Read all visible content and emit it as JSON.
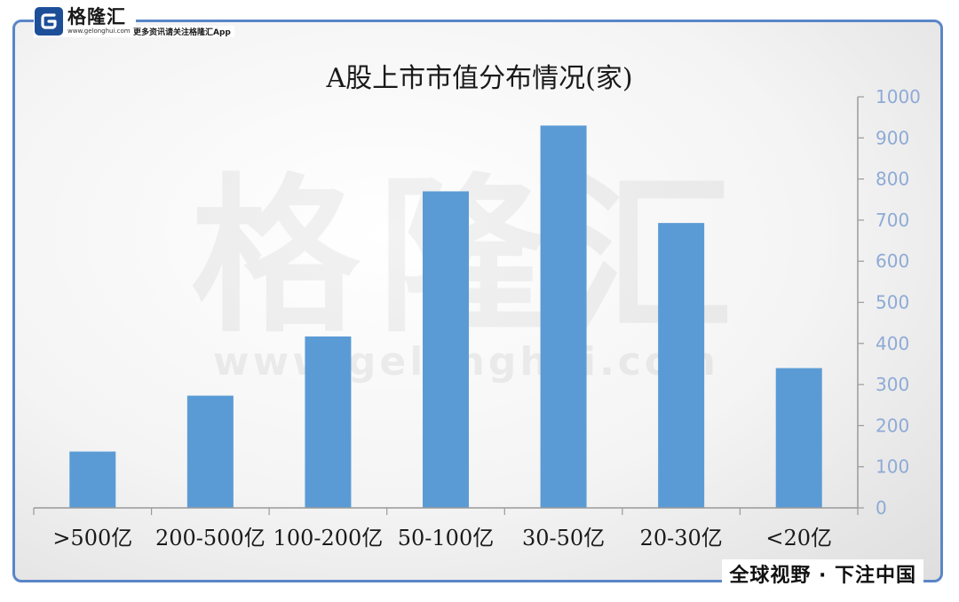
{
  "brand": {
    "name": "格隆汇",
    "url": "www.gelonghui.com",
    "tagline": "更多资讯请关注格隆汇App",
    "slogan": "全球视野 · 下注中国"
  },
  "watermark": {
    "name": "格隆汇",
    "url": "www.gelonghui.com"
  },
  "colors": {
    "bar": "#5b9bd5",
    "frame": "#5a86c8",
    "axis": "#9a9a9a",
    "tick_label": "#8eaad6"
  },
  "chart_data": {
    "type": "bar",
    "title": "A股上市市值分布情况(家)",
    "categories": [
      ">500亿",
      "200-500亿",
      "100-200亿",
      "50-100亿",
      "30-50亿",
      "20-30亿",
      "<20亿"
    ],
    "values": [
      137,
      273,
      417,
      770,
      930,
      693,
      340
    ],
    "ylim": [
      0,
      1000
    ],
    "yticks": [
      "0",
      "100",
      "200",
      "300",
      "400",
      "500",
      "600",
      "700",
      "800",
      "900",
      "1000"
    ],
    "y_axis_position": "right",
    "grid": false,
    "legend": "none"
  }
}
